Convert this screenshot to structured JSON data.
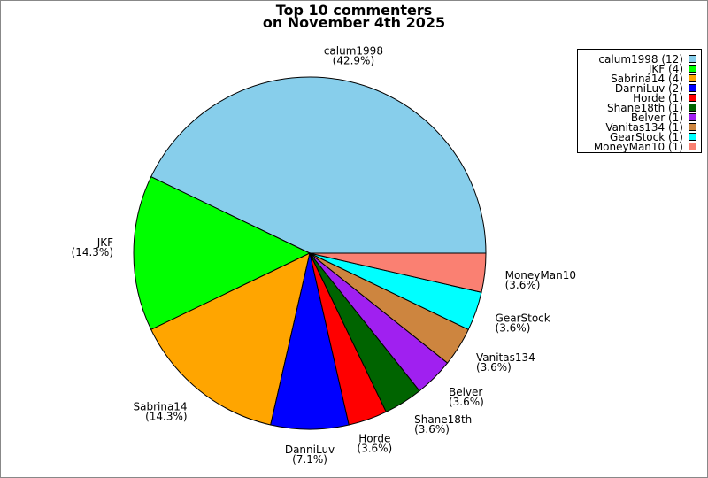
{
  "chart_data": {
    "type": "pie",
    "title": [
      "Top 10 commenters",
      "on November 4th 2025"
    ],
    "start_angle_deg": 0,
    "direction": "counterclockwise",
    "legend_placement": "top-right",
    "slices": [
      {
        "label": "calum1998",
        "value": 12,
        "percent": "42.9%",
        "legend": "calum1998 (12)",
        "color": "#87CEEB"
      },
      {
        "label": "JKF",
        "value": 4,
        "percent": "14.3%",
        "legend": "JKF (4)",
        "color": "#00FF00"
      },
      {
        "label": "Sabrina14",
        "value": 4,
        "percent": "14.3%",
        "legend": "Sabrina14 (4)",
        "color": "#FFA500"
      },
      {
        "label": "DanniLuv",
        "value": 2,
        "percent": "7.1%",
        "legend": "DanniLuv (2)",
        "color": "#0000FF"
      },
      {
        "label": "Horde",
        "value": 1,
        "percent": "3.6%",
        "legend": "Horde (1)",
        "color": "#FF0000"
      },
      {
        "label": "Shane18th",
        "value": 1,
        "percent": "3.6%",
        "legend": "Shane18th (1)",
        "color": "#006400"
      },
      {
        "label": "Belver",
        "value": 1,
        "percent": "3.6%",
        "legend": "Belver (1)",
        "color": "#A020F0"
      },
      {
        "label": "Vanitas134",
        "value": 1,
        "percent": "3.6%",
        "legend": "Vanitas134 (1)",
        "color": "#CD853F"
      },
      {
        "label": "GearStock",
        "value": 1,
        "percent": "3.6%",
        "legend": "GearStock (1)",
        "color": "#00FFFF"
      },
      {
        "label": "MoneyMan10",
        "value": 1,
        "percent": "3.6%",
        "legend": "MoneyMan10 (1)",
        "color": "#FA8072"
      }
    ]
  }
}
